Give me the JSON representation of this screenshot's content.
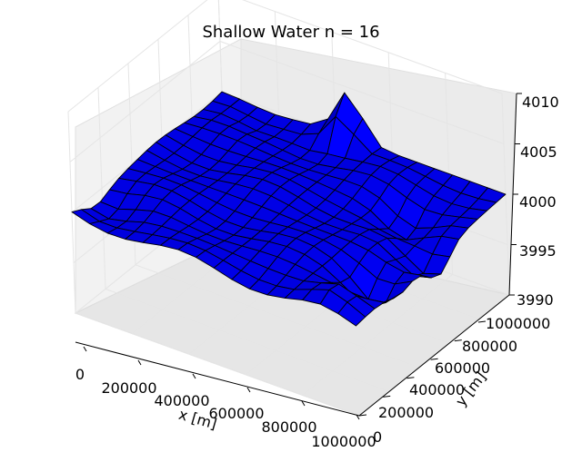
{
  "chart_data": {
    "type": "surface3d",
    "title": "Shallow Water n =  16",
    "xlabel": "x [m]",
    "ylabel": "y [m]",
    "zlabel": "",
    "xlim": [
      0,
      1000000
    ],
    "ylim": [
      0,
      1000000
    ],
    "zlim": [
      3990,
      4010
    ],
    "x_ticks": [
      "0",
      "200000",
      "400000",
      "600000",
      "800000",
      "1000000"
    ],
    "y_ticks": [
      "0",
      "200000",
      "400000",
      "600000",
      "800000",
      "1000000"
    ],
    "z_ticks": [
      "3990",
      "3995",
      "4000",
      "4005",
      "4010"
    ],
    "grid": true,
    "surface_color": "#0000ff",
    "edge_color": "#000000",
    "pane_color": "#f2f2f2",
    "grid_color": "#e5e5e5",
    "resolution": 16,
    "approx_z_range": [
      3990,
      4006
    ]
  }
}
